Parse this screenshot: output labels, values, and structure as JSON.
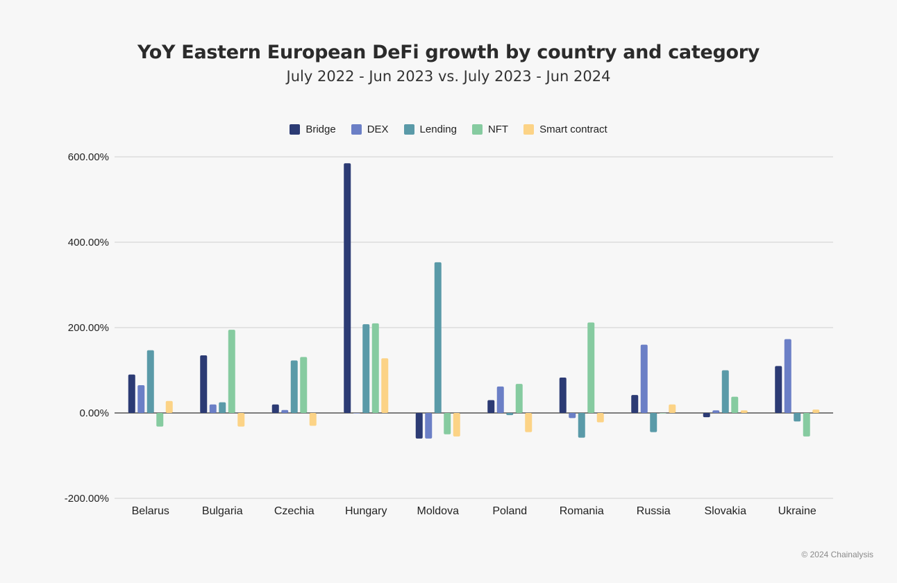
{
  "page": {
    "copyright": "© 2024 Chainalysis"
  },
  "chart_data": {
    "type": "bar",
    "title": "YoY Eastern European DeFi growth by country and category",
    "subtitle": "July 2022 - Jun 2023 vs. July 2023 - Jun 2024",
    "xlabel": "",
    "ylabel": "",
    "ylim": [
      -200,
      600
    ],
    "yticks": [
      600,
      400,
      200,
      0,
      -200
    ],
    "ytick_labels": [
      "600.00%",
      "400.00%",
      "200.00%",
      "0.00%",
      "-200.00%"
    ],
    "legend_position": "top-center",
    "grid": true,
    "categories": [
      "Belarus",
      "Bulgaria",
      "Czechia",
      "Hungary",
      "Moldova",
      "Poland",
      "Romania",
      "Russia",
      "Slovakia",
      "Ukraine"
    ],
    "series": [
      {
        "name": "Bridge",
        "color": "#2c3b74",
        "values": [
          90,
          135,
          20,
          585,
          -60,
          30,
          83,
          42,
          -10,
          110
        ]
      },
      {
        "name": "DEX",
        "color": "#6b7fc6",
        "values": [
          65,
          20,
          7,
          0,
          -60,
          62,
          -12,
          160,
          6,
          173
        ]
      },
      {
        "name": "Lending",
        "color": "#5a9aa8",
        "values": [
          147,
          25,
          123,
          208,
          353,
          -5,
          -58,
          -45,
          100,
          -20
        ]
      },
      {
        "name": "NFT",
        "color": "#86cba0",
        "values": [
          -32,
          195,
          131,
          210,
          -50,
          68,
          212,
          0,
          38,
          -55
        ]
      },
      {
        "name": "Smart contract",
        "color": "#fcd386",
        "values": [
          28,
          -32,
          -30,
          128,
          -55,
          -45,
          -22,
          20,
          6,
          8
        ]
      }
    ]
  }
}
